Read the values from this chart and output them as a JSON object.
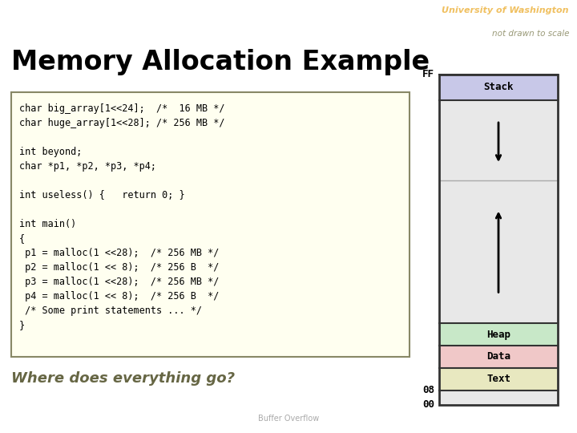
{
  "title": "Memory Allocation Example",
  "header_text": "University of Washington",
  "header_bg": "#7b2d8b",
  "header_color": "#f0c060",
  "not_to_scale": "not drawn to scale",
  "subtitle": "Where does everything go?",
  "footer": "Buffer Overflow",
  "ff_label": "FF",
  "addr_08": "08",
  "addr_00": "00",
  "code_lines": [
    "char big_array[1<<24];  /*  16 MB */",
    "char huge_array[1<<28]; /* 256 MB */",
    "",
    "int beyond;",
    "char *p1, *p2, *p3, *p4;",
    "",
    "int useless() {   return 0; }",
    "",
    "int main()",
    "{",
    " p1 = malloc(1 <<28);  /* 256 MB */",
    " p2 = malloc(1 << 8);  /* 256 B  */",
    " p3 = malloc(1 <<28);  /* 256 MB */",
    " p4 = malloc(1 << 8);  /* 256 B  */",
    " /* Some print statements ... */",
    "}"
  ],
  "code_bg": "#fffff0",
  "code_border": "#888866",
  "stack_color": "#c8c8e8",
  "heap_color": "#c8e8c8",
  "data_color": "#f0c8c8",
  "text_seg_color": "#e8e8c0",
  "empty_color": "#e8e8e8",
  "mem_bg": "#e8e8e8",
  "title_fontsize": 24,
  "code_fontsize": 8.5,
  "subtitle_fontsize": 13
}
